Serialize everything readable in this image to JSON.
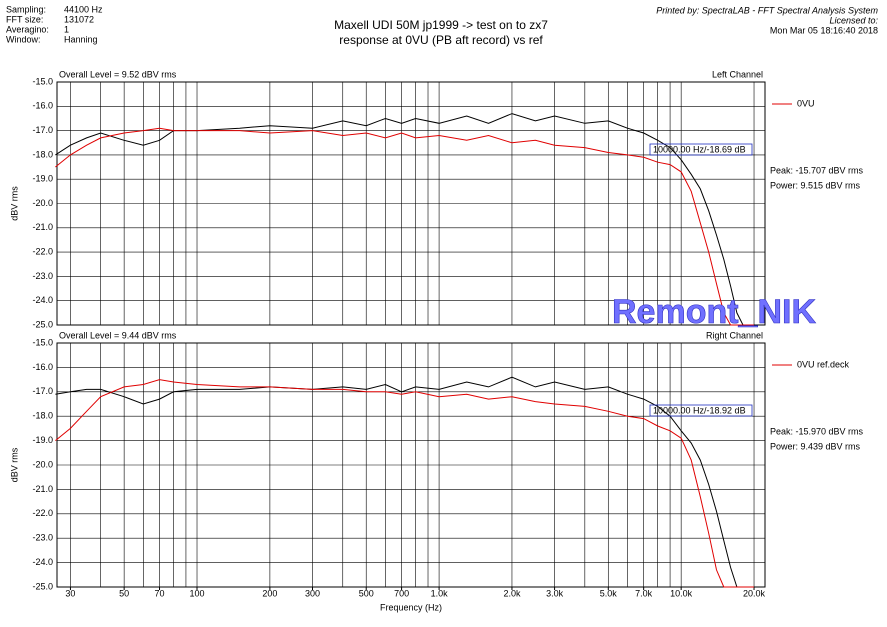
{
  "header": {
    "settings": [
      {
        "label": "Sampling:",
        "value": "44100 Hz"
      },
      {
        "label": "FFT size:",
        "value": "131072"
      },
      {
        "label": "Averagino:",
        "value": "1"
      },
      {
        "label": "Window:",
        "value": "Hanning"
      }
    ],
    "title": [
      "Maxell UDI 50M jp1999 -> test on to zx7",
      "response at 0VU (PB aft record) vs ref"
    ],
    "printed": [
      "Printed by: SpectraLAB - FFT Spectral Analysis System",
      "Licensed to:",
      "Mon Mar 05 18:16:40 2018"
    ],
    "watermark": "Remont_NIK"
  },
  "chart_data": [
    {
      "type": "line",
      "xscale": "log",
      "grid": true,
      "overall": "Overall Level = 9.52 dBV rms",
      "channel": "Left Channel",
      "ylabel": "dBV rms",
      "stats": [
        "Peak: -15.707 dBV rms",
        "Power: 9.515 dBV rms"
      ],
      "cursor": "10000.00 Hz/-18.69 dB",
      "xlim": [
        26.4,
        22200
      ],
      "ylim": [
        -25,
        -15
      ],
      "yticks": [
        {
          "value": -15,
          "label": "-15.0"
        },
        {
          "value": -16,
          "label": "-16.0"
        },
        {
          "value": -17,
          "label": "-17.0"
        },
        {
          "value": -18,
          "label": "-18.0"
        },
        {
          "value": -19,
          "label": "-19.0"
        },
        {
          "value": -20,
          "label": "-20.0"
        },
        {
          "value": -21,
          "label": "-21.0"
        },
        {
          "value": -22,
          "label": "-22.0"
        },
        {
          "value": -23,
          "label": "-23.0"
        },
        {
          "value": -24,
          "label": "-24.0"
        },
        {
          "value": -25,
          "label": "-25.0"
        }
      ],
      "xgrid": [
        30,
        40,
        50,
        60,
        70,
        80,
        90,
        100,
        200,
        300,
        400,
        500,
        600,
        700,
        800,
        900,
        1000,
        2000,
        3000,
        4000,
        5000,
        6000,
        7000,
        8000,
        9000,
        10000,
        20000
      ],
      "x": [
        26,
        30,
        35,
        40,
        50,
        60,
        70,
        80,
        100,
        150,
        200,
        300,
        400,
        500,
        600,
        700,
        800,
        1000,
        1300,
        1600,
        2000,
        2500,
        3000,
        4000,
        5000,
        6000,
        7000,
        8000,
        9000,
        10000,
        11000,
        12000,
        13000,
        14000,
        15000,
        16000,
        17000,
        18000,
        20000
      ],
      "series": [
        {
          "color": "#000000",
          "values": [
            -18.0,
            -17.6,
            -17.3,
            -17.1,
            -17.4,
            -17.6,
            -17.4,
            -17.0,
            -17.0,
            -16.9,
            -16.8,
            -16.9,
            -16.6,
            -16.8,
            -16.5,
            -16.7,
            -16.5,
            -16.7,
            -16.4,
            -16.7,
            -16.3,
            -16.6,
            -16.4,
            -16.7,
            -16.6,
            -16.9,
            -17.1,
            -17.4,
            -17.7,
            -18.2,
            -18.8,
            -19.4,
            -20.3,
            -21.3,
            -22.3,
            -23.4,
            -24.5,
            -25.0,
            -25.0
          ]
        },
        {
          "name": "0VU",
          "color": "#e00000",
          "values": [
            -18.5,
            -18.0,
            -17.6,
            -17.3,
            -17.1,
            -17.0,
            -16.9,
            -17.0,
            -17.0,
            -17.0,
            -17.1,
            -17.0,
            -17.2,
            -17.1,
            -17.3,
            -17.1,
            -17.3,
            -17.2,
            -17.4,
            -17.2,
            -17.5,
            -17.4,
            -17.6,
            -17.7,
            -17.9,
            -18.0,
            -18.1,
            -18.3,
            -18.4,
            -18.7,
            -19.5,
            -20.8,
            -22.0,
            -23.3,
            -24.5,
            -25.0,
            -25.0,
            -25.0,
            -25.0
          ]
        }
      ]
    },
    {
      "type": "line",
      "xscale": "log",
      "grid": true,
      "overall": "Overall Level = 9.44 dBV rms",
      "channel": "Right Channel",
      "ylabel": "dBV rms",
      "xlabel": "Frequency (Hz)",
      "stats": [
        "Peak: -15.970 dBV rms",
        "Power: 9.439 dBV rms"
      ],
      "cursor": "10000.00 Hz/-18.92 dB",
      "xlim": [
        26.4,
        22200
      ],
      "ylim": [
        -25,
        -15
      ],
      "yticks": [
        {
          "value": -15,
          "label": "-15.0"
        },
        {
          "value": -16,
          "label": "-16.0"
        },
        {
          "value": -17,
          "label": "-17.0"
        },
        {
          "value": -18,
          "label": "-18.0"
        },
        {
          "value": -19,
          "label": "-19.0"
        },
        {
          "value": -20,
          "label": "-20.0"
        },
        {
          "value": -21,
          "label": "-21.0"
        },
        {
          "value": -22,
          "label": "-22.0"
        },
        {
          "value": -23,
          "label": "-23.0"
        },
        {
          "value": -24,
          "label": "-24.0"
        },
        {
          "value": -25,
          "label": "-25.0"
        }
      ],
      "xticks": [
        30,
        50,
        70,
        100,
        200,
        300,
        500,
        700,
        {
          "value": 1000,
          "label": "1.0k"
        },
        {
          "value": 2000,
          "label": "2.0k"
        },
        {
          "value": 3000,
          "label": "3.0k"
        },
        {
          "value": 5000,
          "label": "5.0k"
        },
        {
          "value": 7000,
          "label": "7.0k"
        },
        {
          "value": 10000,
          "label": "10.0k"
        },
        {
          "value": 20000,
          "label": "20.0k"
        }
      ],
      "xgrid": [
        30,
        40,
        50,
        60,
        70,
        80,
        90,
        100,
        200,
        300,
        400,
        500,
        600,
        700,
        800,
        900,
        1000,
        2000,
        3000,
        4000,
        5000,
        6000,
        7000,
        8000,
        9000,
        10000,
        20000
      ],
      "x": [
        26,
        30,
        35,
        40,
        50,
        60,
        70,
        80,
        100,
        150,
        200,
        300,
        400,
        500,
        600,
        700,
        800,
        1000,
        1300,
        1600,
        2000,
        2500,
        3000,
        4000,
        5000,
        6000,
        7000,
        8000,
        9000,
        10000,
        11000,
        12000,
        13000,
        14000,
        15000,
        16000,
        17000,
        18000,
        20000
      ],
      "series": [
        {
          "color": "#000000",
          "values": [
            -17.1,
            -17.0,
            -16.9,
            -16.9,
            -17.2,
            -17.5,
            -17.3,
            -17.0,
            -16.9,
            -16.9,
            -16.8,
            -16.9,
            -16.8,
            -16.9,
            -16.7,
            -17.0,
            -16.8,
            -16.9,
            -16.6,
            -16.8,
            -16.4,
            -16.8,
            -16.6,
            -16.9,
            -16.8,
            -17.1,
            -17.3,
            -17.6,
            -18.0,
            -18.6,
            -19.1,
            -19.8,
            -20.8,
            -21.9,
            -23.1,
            -24.2,
            -25.0,
            -25.0,
            -25.0
          ]
        },
        {
          "name": "0VU  ref.deck",
          "color": "#e00000",
          "values": [
            -19.0,
            -18.5,
            -17.8,
            -17.2,
            -16.8,
            -16.7,
            -16.5,
            -16.6,
            -16.7,
            -16.8,
            -16.8,
            -16.9,
            -16.9,
            -17.0,
            -17.0,
            -17.1,
            -17.0,
            -17.2,
            -17.1,
            -17.3,
            -17.2,
            -17.4,
            -17.5,
            -17.6,
            -17.8,
            -18.0,
            -18.1,
            -18.4,
            -18.6,
            -18.9,
            -19.8,
            -21.3,
            -22.8,
            -24.3,
            -25.0,
            -25.0,
            -25.0,
            -25.0,
            -25.0
          ]
        }
      ]
    }
  ]
}
